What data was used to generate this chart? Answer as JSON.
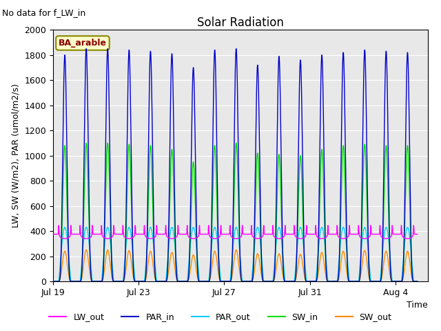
{
  "title": "Solar Radiation",
  "note": "No data for f_LW_in",
  "site_label": "BA_arable",
  "ylabel": "LW, SW (W/m2), PAR (umol/m2/s)",
  "xlabel": "Time",
  "xlim_days": [
    0,
    17.5
  ],
  "ylim": [
    0,
    2000
  ],
  "yticks": [
    0,
    200,
    400,
    600,
    800,
    1000,
    1200,
    1400,
    1600,
    1800,
    2000
  ],
  "xtick_labels": [
    "Jul 19",
    "Jul 23",
    "Jul 27",
    "Jul 31",
    "Aug 4"
  ],
  "xtick_positions": [
    0,
    4,
    8,
    12,
    16
  ],
  "background_color": "#e8e8e8",
  "lines": {
    "LW_out": {
      "color": "#ff00ff",
      "lw": 1.0
    },
    "PAR_in": {
      "color": "#0000cc",
      "lw": 1.0
    },
    "PAR_out": {
      "color": "#00ccff",
      "lw": 1.0
    },
    "SW_in": {
      "color": "#00dd00",
      "lw": 1.0
    },
    "SW_out": {
      "color": "#ff8800",
      "lw": 1.0
    }
  },
  "legend_labels": [
    "LW_out",
    "PAR_in",
    "PAR_out",
    "SW_in",
    "SW_out"
  ],
  "legend_colors": [
    "#ff00ff",
    "#0000cc",
    "#00ccff",
    "#00dd00",
    "#ff8800"
  ],
  "PAR_in_peaks": [
    1800,
    1850,
    1850,
    1840,
    1830,
    1810,
    1700,
    1840,
    1850,
    1720,
    1790,
    1760,
    1800,
    1820,
    1840,
    1830,
    1820
  ],
  "SW_in_peaks": [
    1080,
    1100,
    1100,
    1090,
    1080,
    1050,
    950,
    1080,
    1100,
    1020,
    1010,
    1000,
    1050,
    1080,
    1090,
    1080,
    1080
  ],
  "SW_out_peaks": [
    240,
    250,
    250,
    245,
    240,
    230,
    210,
    240,
    250,
    220,
    220,
    215,
    230,
    240,
    245,
    240,
    240
  ],
  "PAR_out_peak": 430,
  "LW_out_base": 375,
  "LW_out_amp": 70,
  "n_days": 17,
  "title_fontsize": 12,
  "label_fontsize": 9,
  "tick_fontsize": 9
}
